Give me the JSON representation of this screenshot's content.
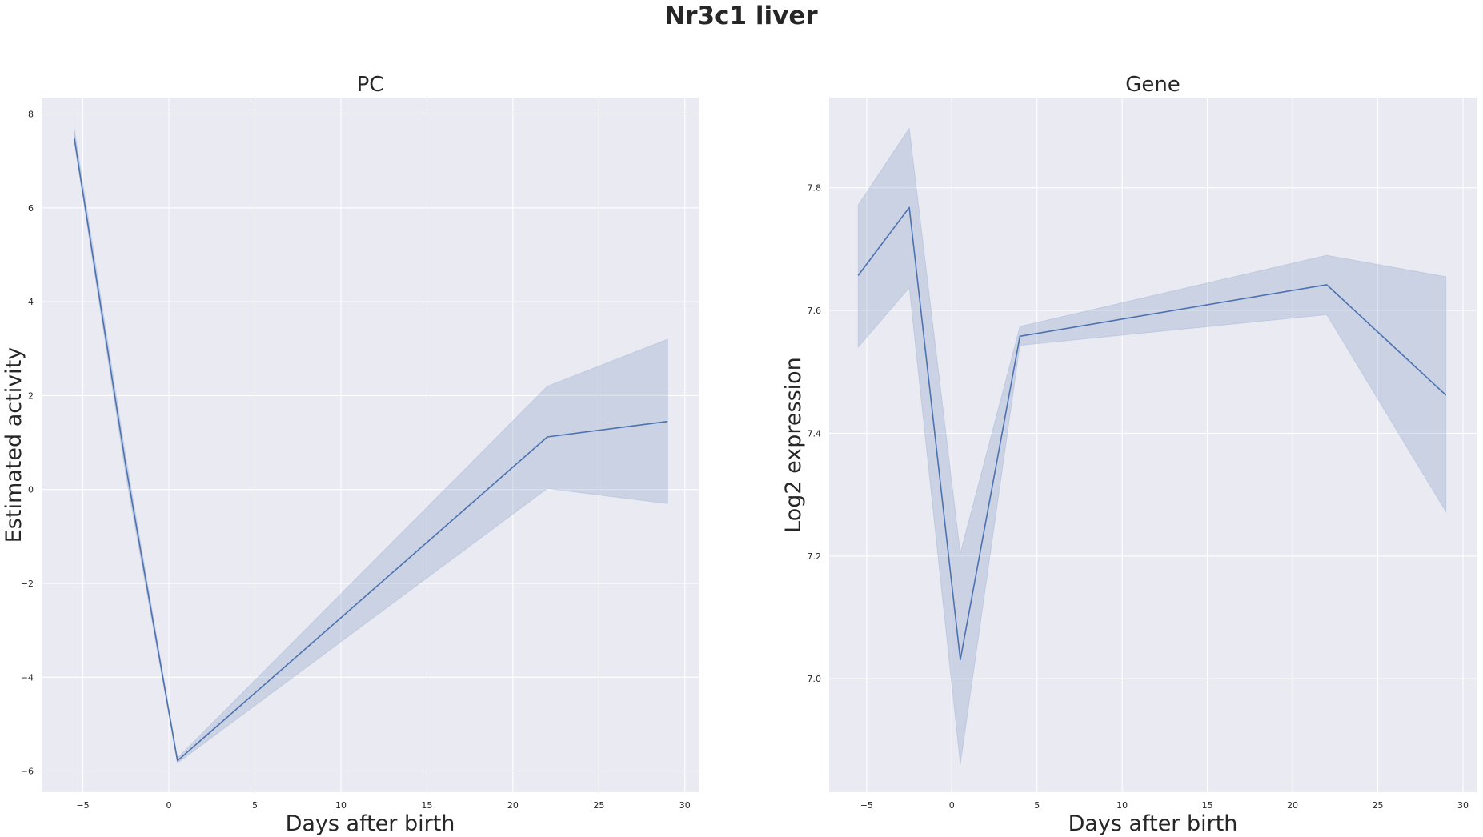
{
  "figure": {
    "title": "Nr3c1 liver"
  },
  "chart_data": [
    {
      "type": "line",
      "title": "PC",
      "xlabel": "Days after birth",
      "ylabel": "Estimated activity",
      "xlim": [
        -7.4,
        30.8
      ],
      "ylim": [
        -6.45,
        8.35
      ],
      "xticks": [
        -5,
        0,
        5,
        10,
        15,
        20,
        25,
        30
      ],
      "yticks": [
        -6,
        -4,
        -2,
        0,
        2,
        4,
        6,
        8
      ],
      "grid": true,
      "color": "#4c72b0",
      "series": [
        {
          "x": [
            -5.5,
            -2.5,
            0.5,
            22,
            29
          ],
          "y": [
            7.5,
            0.5,
            -5.78,
            1.12,
            1.45
          ],
          "ci_low": [
            7.4,
            0.3,
            -5.83,
            0.02,
            -0.3
          ],
          "ci_high": [
            7.7,
            0.7,
            -5.72,
            2.2,
            3.2
          ]
        }
      ]
    },
    {
      "type": "line",
      "title": "Gene",
      "xlabel": "Days after birth",
      "ylabel": "Log2 expression",
      "xlim": [
        -7.2,
        30.8
      ],
      "ylim": [
        6.815,
        7.947
      ],
      "xticks": [
        -5,
        0,
        5,
        10,
        15,
        20,
        25,
        30
      ],
      "yticks": [
        7.0,
        7.2,
        7.4,
        7.6,
        7.8
      ],
      "grid": true,
      "color": "#4c72b0",
      "series": [
        {
          "x": [
            -5.5,
            -2.5,
            0.5,
            4,
            22,
            29
          ],
          "y": [
            7.657,
            7.768,
            7.031,
            7.558,
            7.642,
            7.462
          ],
          "ci_low": [
            7.54,
            7.637,
            6.86,
            7.543,
            7.593,
            7.272
          ],
          "ci_high": [
            7.772,
            7.897,
            7.205,
            7.574,
            7.69,
            7.655
          ]
        }
      ]
    }
  ]
}
